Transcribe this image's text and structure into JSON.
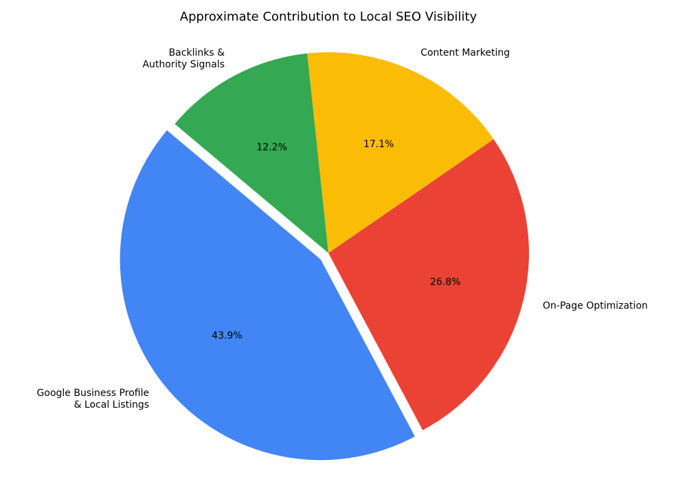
{
  "chart_data": {
    "type": "pie",
    "title": "Approximate Contribution to Local SEO Visibility",
    "start_angle_deg": 140,
    "direction": "counterclockwise",
    "slices": [
      {
        "label": [
          "Google Business Profile",
          "& Local Listings"
        ],
        "value": 43.9,
        "pct_label": "43.9%",
        "color": "#4285F4",
        "exploded": true
      },
      {
        "label": [
          "On-Page Optimization"
        ],
        "value": 26.8,
        "pct_label": "26.8%",
        "color": "#EA4335",
        "exploded": false
      },
      {
        "label": [
          "Content Marketing"
        ],
        "value": 17.1,
        "pct_label": "17.1%",
        "color": "#FBBC05",
        "exploded": false
      },
      {
        "label": [
          "Backlinks &",
          "Authority Signals"
        ],
        "value": 12.2,
        "pct_label": "12.2%",
        "color": "#34A853",
        "exploded": false
      }
    ]
  }
}
